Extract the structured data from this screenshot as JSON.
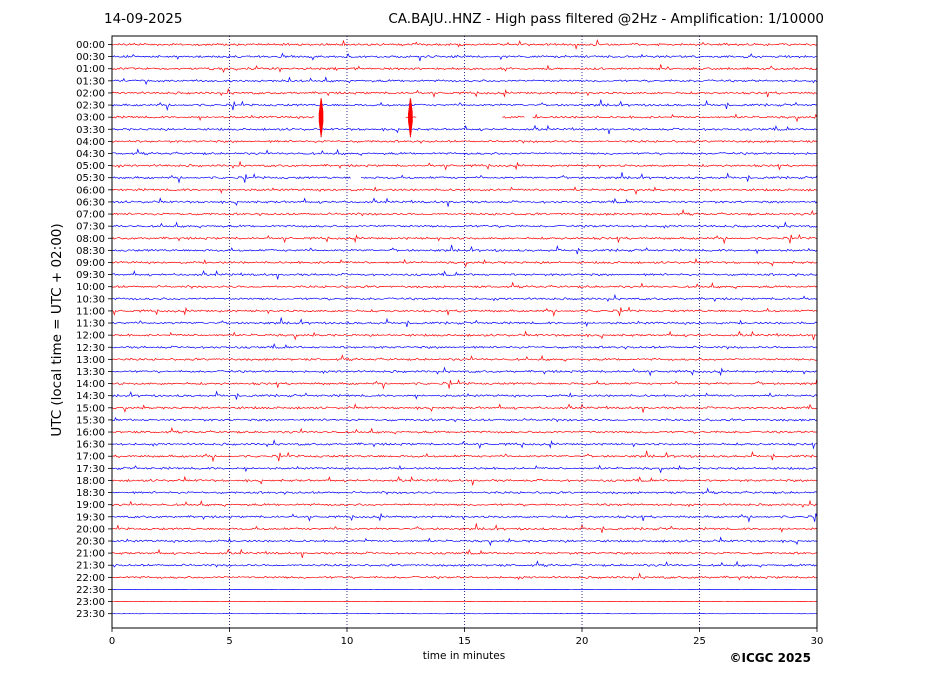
{
  "header": {
    "date": "14-09-2025",
    "title": "CA.BAJU..HNZ - High pass filtered @2Hz - Amplification: 1/10000"
  },
  "credit": "©ICGC 2025",
  "chart_data": {
    "type": "line",
    "title": "CA.BAJU..HNZ - High pass filtered @2Hz - Amplification: 1/10000",
    "xlabel": "time in minutes",
    "ylabel": "UTC (local time = UTC + 02:00)",
    "xlim": [
      0,
      30
    ],
    "xticks": [
      0,
      5,
      10,
      15,
      20,
      25,
      30
    ],
    "grid": "vertical dotted lines at x ticks",
    "colors": {
      "even_rows": "#ff0000",
      "odd_rows": "#0000ff",
      "grid": "#000080"
    },
    "rows": [
      "00:00",
      "00:30",
      "01:00",
      "01:30",
      "02:00",
      "02:30",
      "03:00",
      "03:30",
      "04:00",
      "04:30",
      "05:00",
      "05:30",
      "06:00",
      "06:30",
      "07:00",
      "07:30",
      "08:00",
      "08:30",
      "09:00",
      "09:30",
      "10:00",
      "10:30",
      "11:00",
      "11:30",
      "12:00",
      "12:30",
      "13:00",
      "13:30",
      "14:00",
      "14:30",
      "15:00",
      "15:30",
      "16:00",
      "16:30",
      "17:00",
      "17:30",
      "18:00",
      "18:30",
      "19:00",
      "19:30",
      "20:00",
      "20:30",
      "21:00",
      "21:30",
      "22:00",
      "22:30",
      "23:00",
      "23:30"
    ],
    "quiet_from_row": "22:30",
    "events": [
      {
        "row": "03:00",
        "minute": 8.9,
        "amplitude": "large"
      },
      {
        "row": "03:00",
        "minute": 12.7,
        "amplitude": "large"
      }
    ],
    "gaps": [
      {
        "row": "03:00",
        "from": 8.6,
        "to": 12.5
      },
      {
        "row": "03:00",
        "from": 13.0,
        "to": 16.6
      },
      {
        "row": "03:00",
        "from": 17.6,
        "to": 17.9
      },
      {
        "row": "05:30",
        "from": 10.2,
        "to": 10.6
      }
    ]
  }
}
